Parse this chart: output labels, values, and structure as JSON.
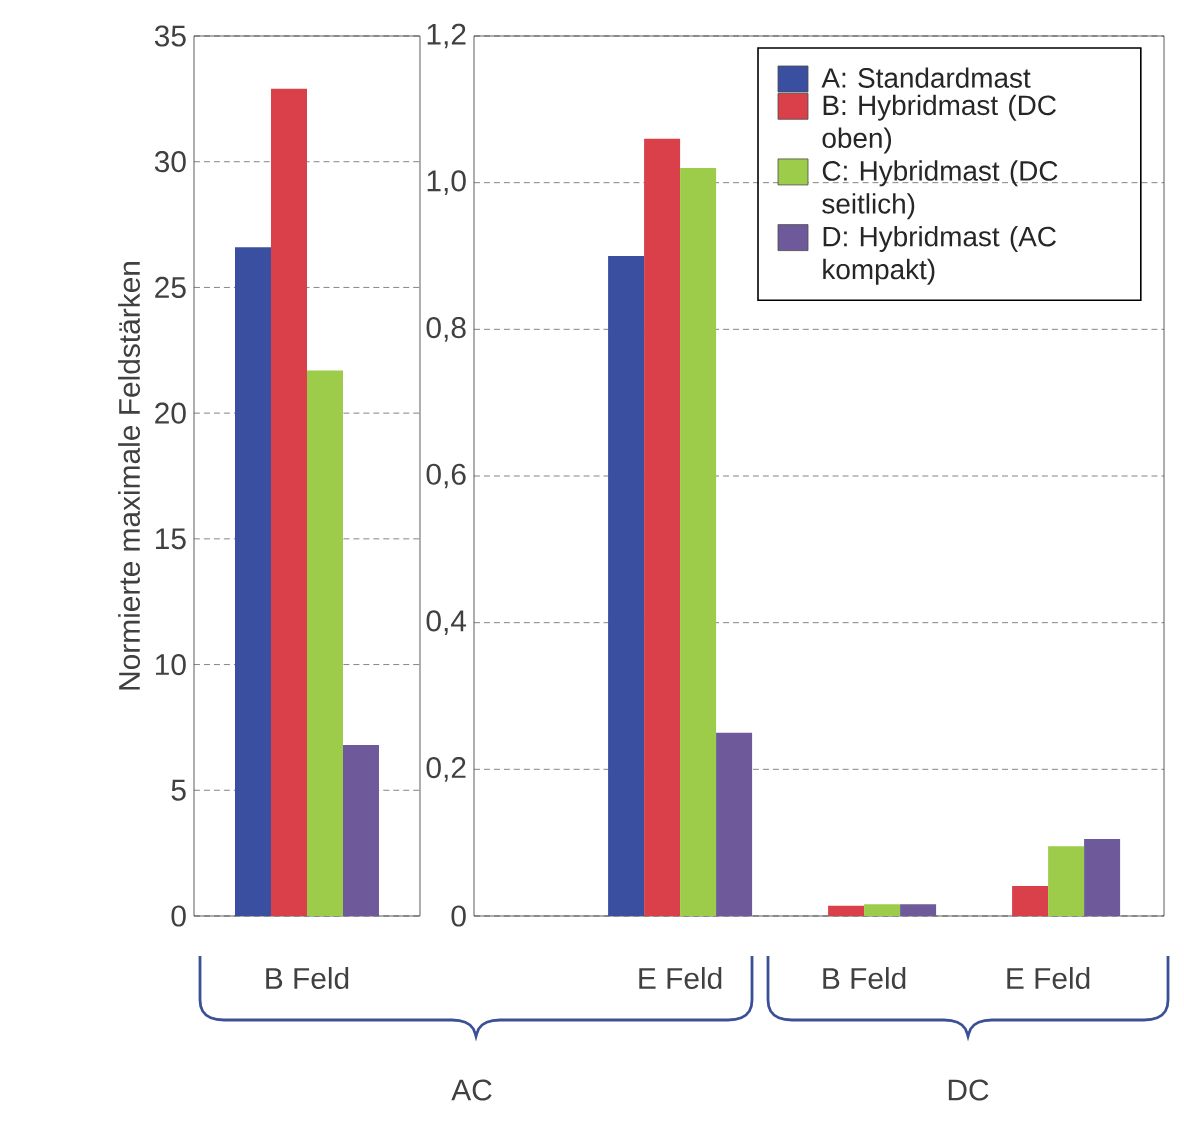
{
  "chart_data": [
    {
      "type": "bar",
      "ylabel": "Normierte maximale Feldstärken",
      "categories": [
        "B Feld"
      ],
      "ylim": [
        0,
        35
      ],
      "yticks": [
        0,
        5,
        10,
        15,
        20,
        25,
        30,
        35
      ],
      "grid": "y",
      "annotations": [
        "AC"
      ],
      "series": [
        {
          "color": "#3b4fa0",
          "values": [
            26.6
          ]
        },
        {
          "color": "#d9404a",
          "values": [
            32.9
          ]
        },
        {
          "color": "#9ccc4a",
          "values": [
            21.7
          ]
        },
        {
          "color": "#6e5a9a",
          "values": [
            6.8
          ]
        }
      ]
    },
    {
      "type": "bar",
      "categories": [
        "E Feld",
        "B Feld",
        "E Feld"
      ],
      "ylim": [
        0,
        1.2
      ],
      "yticks": [
        {
          "value": 0,
          "label": "0"
        },
        {
          "value": 0.2,
          "label": "0,2"
        },
        {
          "value": 0.4,
          "label": "0,4"
        },
        {
          "value": 0.6,
          "label": "0,6"
        },
        {
          "value": 0.8,
          "label": "0,8"
        },
        {
          "value": 1.0,
          "label": "1,0"
        },
        {
          "value": 1.2,
          "label": "1,2"
        }
      ],
      "grid": "y",
      "legend": "top right",
      "annotations": [
        "DC"
      ],
      "series": [
        {
          "name": "A: Standardmast",
          "color": "#3b4fa0",
          "values": [
            0.9,
            null,
            null
          ]
        },
        {
          "name": "B: Hybridmast (DC oben)",
          "color": "#d9404a",
          "values": [
            1.06,
            0.014,
            0.041
          ]
        },
        {
          "name": "C: Hybridmast (DC seitlich)",
          "color": "#9ccc4a",
          "values": [
            1.02,
            0.016,
            0.095
          ]
        },
        {
          "name": "D: Hybridmast (AC kompakt)",
          "color": "#6e5a9a",
          "values": [
            0.25,
            0.016,
            0.105
          ]
        }
      ]
    }
  ]
}
